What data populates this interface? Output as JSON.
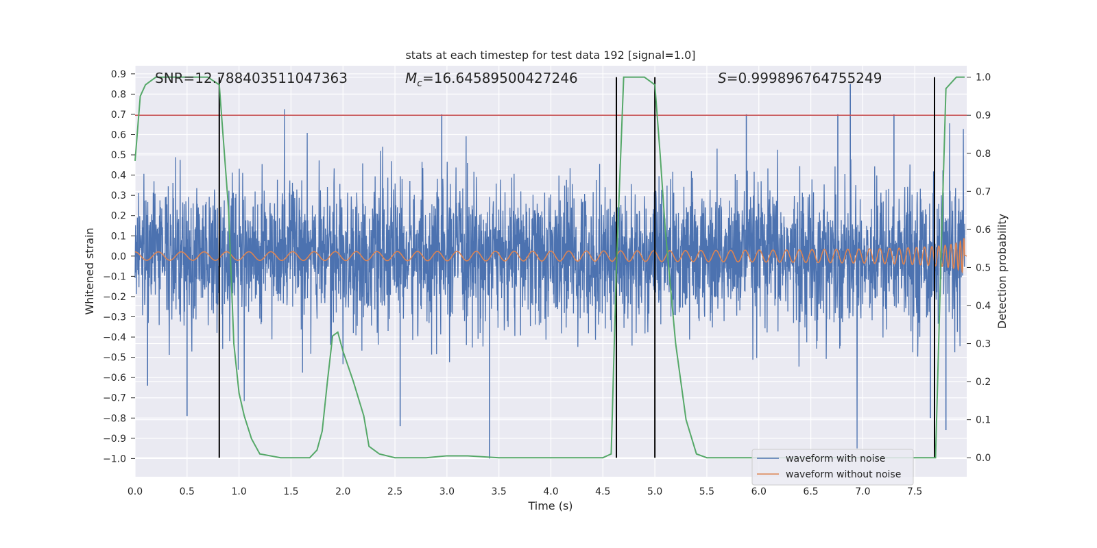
{
  "chart_data": {
    "type": "line",
    "title": "stats at each timestep for test data 192 [signal=1.0]",
    "xlabel": "Time (s)",
    "ylabel": "Whitened strain",
    "y2label": "Detection probability",
    "xlim": [
      0.0,
      8.0
    ],
    "ylim": [
      -1.09,
      0.94
    ],
    "y2lim": [
      -0.05,
      1.03
    ],
    "xticks": [
      "0.0",
      "0.5",
      "1.0",
      "1.5",
      "2.0",
      "2.5",
      "3.0",
      "3.5",
      "4.0",
      "4.5",
      "5.0",
      "5.5",
      "6.0",
      "6.5",
      "7.0",
      "7.5"
    ],
    "xtick_values": [
      0.0,
      0.5,
      1.0,
      1.5,
      2.0,
      2.5,
      3.0,
      3.5,
      4.0,
      4.5,
      5.0,
      5.5,
      6.0,
      6.5,
      7.0,
      7.5
    ],
    "yticks": [
      "0.9",
      "0.8",
      "0.7",
      "0.6",
      "0.5",
      "0.4",
      "0.3",
      "0.2",
      "0.1",
      "0.0",
      "−0.1",
      "−0.2",
      "−0.3",
      "−0.4",
      "−0.5",
      "−0.6",
      "−0.7",
      "−0.8",
      "−0.9",
      "−1.0"
    ],
    "ytick_values": [
      0.9,
      0.8,
      0.7,
      0.6,
      0.5,
      0.4,
      0.3,
      0.2,
      0.1,
      0.0,
      -0.1,
      -0.2,
      -0.3,
      -0.4,
      -0.5,
      -0.6,
      -0.7,
      -0.8,
      -0.9,
      -1.0
    ],
    "y2ticks": [
      "1.0",
      "0.9",
      "0.8",
      "0.7",
      "0.6",
      "0.5",
      "0.4",
      "0.3",
      "0.2",
      "0.1",
      "0.0"
    ],
    "y2tick_values": [
      1.0,
      0.9,
      0.8,
      0.7,
      0.6,
      0.5,
      0.4,
      0.3,
      0.2,
      0.1,
      0.0
    ],
    "annotations": {
      "snr": "SNR=12.788403511047363",
      "mc_symbol": "M",
      "mc_sub": "c",
      "mc_value": "=16.64589500427246",
      "s_symbol": "S",
      "s_value": "=0.999896764755249"
    },
    "threshold": {
      "value": 0.9,
      "axis": "y2",
      "color": "#c44e52"
    },
    "vlines": [
      0.81,
      4.63,
      5.0,
      7.69
    ],
    "series": [
      {
        "name": "waveform with noise",
        "color": "#4c72b0",
        "axis": "y",
        "kind": "noise",
        "sigma": 0.17,
        "samples": 3200,
        "spikes": [
          {
            "x": 0.5,
            "y": -0.79
          },
          {
            "x": 0.12,
            "y": -0.64
          },
          {
            "x": 2.95,
            "y": 0.7
          },
          {
            "x": 3.41,
            "y": -1.0
          },
          {
            "x": 5.88,
            "y": 0.7
          },
          {
            "x": 6.76,
            "y": 0.7
          },
          {
            "x": 6.88,
            "y": 0.85
          },
          {
            "x": 7.3,
            "y": 0.7
          },
          {
            "x": 7.8,
            "y": -0.86
          },
          {
            "x": 7.65,
            "y": -0.8
          },
          {
            "x": 2.55,
            "y": -0.84
          }
        ]
      },
      {
        "name": "waveform without noise",
        "color": "#dd8452",
        "axis": "y",
        "kind": "chirp",
        "t_end": 7.98
      },
      {
        "name": "detection probability",
        "color": "#55a868",
        "axis": "y2",
        "kind": "line",
        "x": [
          0.0,
          0.05,
          0.1,
          0.2,
          0.3,
          0.5,
          0.7,
          0.81,
          0.9,
          0.95,
          1.0,
          1.05,
          1.12,
          1.2,
          1.4,
          1.6,
          1.68,
          1.75,
          1.8,
          1.85,
          1.9,
          1.95,
          2.0,
          2.1,
          2.2,
          2.25,
          2.35,
          2.5,
          2.8,
          3.0,
          3.2,
          3.5,
          4.0,
          4.5,
          4.58,
          4.63,
          4.7,
          4.8,
          4.9,
          5.0,
          5.05,
          5.1,
          5.15,
          5.2,
          5.3,
          5.4,
          5.5,
          6.0,
          7.0,
          7.6,
          7.7,
          7.75,
          7.8,
          7.9,
          7.98
        ],
        "y": [
          0.78,
          0.95,
          0.98,
          1.0,
          1.0,
          1.0,
          1.0,
          0.98,
          0.65,
          0.3,
          0.17,
          0.11,
          0.05,
          0.01,
          0.0,
          0.0,
          0.0,
          0.02,
          0.07,
          0.2,
          0.32,
          0.33,
          0.28,
          0.2,
          0.11,
          0.03,
          0.01,
          0.0,
          0.0,
          0.005,
          0.005,
          0.0,
          0.0,
          0.0,
          0.01,
          0.5,
          1.0,
          1.0,
          1.0,
          0.98,
          0.8,
          0.6,
          0.45,
          0.3,
          0.1,
          0.01,
          0.0,
          0.0,
          0.0,
          0.0,
          0.0,
          0.5,
          0.97,
          1.0,
          1.0
        ]
      },
      {
        "name": "threshold",
        "color": "#c44e52",
        "axis": "y2",
        "kind": "hline"
      }
    ],
    "legend": {
      "position": "lower-right",
      "items": [
        {
          "label": "waveform with noise",
          "color": "#4c72b0"
        },
        {
          "label": "waveform without noise",
          "color": "#dd8452"
        }
      ]
    },
    "grid": true
  }
}
